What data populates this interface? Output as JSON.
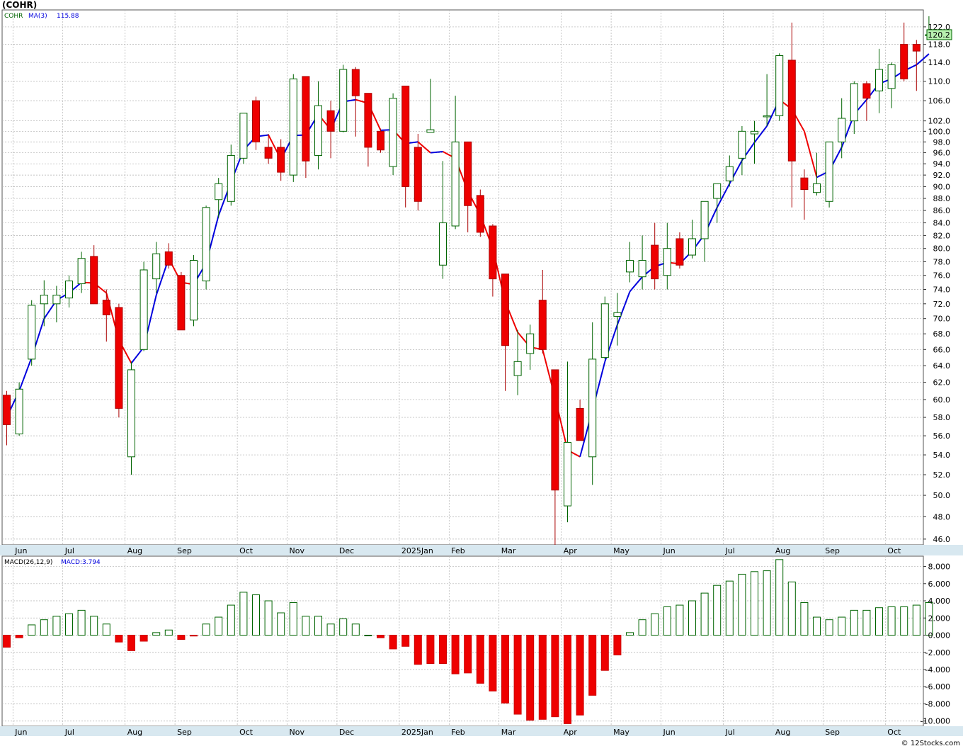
{
  "header": {
    "title": "(COHR)",
    "credit": "© 12Stocks.com"
  },
  "price_panel": {
    "label_symbol": "COHR",
    "label_ma": "MA(3)",
    "label_ma_value": "115.88",
    "last_price_tag": "120.2"
  },
  "macd_panel": {
    "label_params": "MACD(26,12,9)",
    "label_value": "MACD:3.794"
  },
  "colors": {
    "up_candle": "#006400",
    "down_candle": "#ee0000",
    "ma_up": "#0000dd",
    "ma_down": "#ee0000",
    "grid": "#b0b0b0",
    "axis_band": "#d8e8f0",
    "tag_fill": "#b8f0b0"
  },
  "chart_data": [
    {
      "type": "candlestick",
      "symbol": "COHR",
      "interval": "weekly",
      "y_scale": "log",
      "ylim": [
        45.5,
        126.0
      ],
      "y_ticks": [
        46.0,
        48.0,
        50.0,
        52.0,
        54.0,
        56.0,
        58.0,
        60.0,
        62.0,
        64.0,
        66.0,
        68.0,
        70.0,
        72.0,
        74.0,
        76.0,
        78.0,
        80.0,
        82.0,
        84.0,
        86.0,
        88.0,
        90.0,
        92.0,
        94.0,
        96.0,
        98.0,
        100.0,
        102.0,
        106.0,
        110.0,
        114.0,
        118.0,
        122.0
      ],
      "x_month_labels": [
        {
          "label": "Jun",
          "index": 1
        },
        {
          "label": "Jul",
          "index": 5
        },
        {
          "label": "Aug",
          "index": 10
        },
        {
          "label": "Sep",
          "index": 14
        },
        {
          "label": "Oct",
          "index": 19
        },
        {
          "label": "Nov",
          "index": 23
        },
        {
          "label": "Dec",
          "index": 27
        },
        {
          "label": "2025Jan",
          "index": 32
        },
        {
          "label": "Feb",
          "index": 36
        },
        {
          "label": "Mar",
          "index": 40
        },
        {
          "label": "Apr",
          "index": 45
        },
        {
          "label": "May",
          "index": 49
        },
        {
          "label": "Jun",
          "index": 53
        },
        {
          "label": "Jul",
          "index": 58
        },
        {
          "label": "Aug",
          "index": 62
        },
        {
          "label": "Sep",
          "index": 66
        },
        {
          "label": "Oct",
          "index": 71
        }
      ],
      "ohlc": [
        [
          60.5,
          61.0,
          55.0,
          57.2
        ],
        [
          56.2,
          62.0,
          56.0,
          61.2
        ],
        [
          64.8,
          72.5,
          64.0,
          71.8
        ],
        [
          72.0,
          75.3,
          69.0,
          73.2
        ],
        [
          72.0,
          74.5,
          69.5,
          73.2
        ],
        [
          72.8,
          76.0,
          71.5,
          75.2
        ],
        [
          74.8,
          79.5,
          73.5,
          78.5
        ],
        [
          78.8,
          80.5,
          72.0,
          72.0
        ],
        [
          72.5,
          74.0,
          67.0,
          70.5
        ],
        [
          71.5,
          72.0,
          58.0,
          59.0
        ],
        [
          53.8,
          64.5,
          52.0,
          63.5
        ],
        [
          66.0,
          78.0,
          65.8,
          76.8
        ],
        [
          75.5,
          81.0,
          73.5,
          79.2
        ],
        [
          79.5,
          80.8,
          77.0,
          77.5
        ],
        [
          76.0,
          76.5,
          68.5,
          68.5
        ],
        [
          69.8,
          79.0,
          69.0,
          78.2
        ],
        [
          75.2,
          86.8,
          74.0,
          86.5
        ],
        [
          87.8,
          91.5,
          84.8,
          90.5
        ],
        [
          87.5,
          97.5,
          86.8,
          95.5
        ],
        [
          95.0,
          103.5,
          94.0,
          103.5
        ],
        [
          106.0,
          106.8,
          96.5,
          98.0
        ],
        [
          97.0,
          99.5,
          94.0,
          95.0
        ],
        [
          97.0,
          98.5,
          91.0,
          92.5
        ],
        [
          92.0,
          111.5,
          90.8,
          110.5
        ],
        [
          111.0,
          111.0,
          91.5,
          94.5
        ],
        [
          95.5,
          110.0,
          93.0,
          105.0
        ],
        [
          104.0,
          106.0,
          95.0,
          100.0
        ],
        [
          100.0,
          113.5,
          99.8,
          112.5
        ],
        [
          112.5,
          113.0,
          99.0,
          107.0
        ],
        [
          107.5,
          107.5,
          93.5,
          97.0
        ],
        [
          100.0,
          100.5,
          96.0,
          96.5
        ],
        [
          93.5,
          107.5,
          92.0,
          106.5
        ],
        [
          109.0,
          109.0,
          86.5,
          90.0
        ],
        [
          97.0,
          99.5,
          86.0,
          87.5
        ],
        [
          99.8,
          110.5,
          99.8,
          100.3
        ],
        [
          77.5,
          94.5,
          75.5,
          84.0
        ],
        [
          83.5,
          107.0,
          83.0,
          98.0
        ],
        [
          98.0,
          98.0,
          82.5,
          86.8
        ],
        [
          88.5,
          89.5,
          81.8,
          82.5
        ],
        [
          83.5,
          83.8,
          73.0,
          75.5
        ],
        [
          76.2,
          76.2,
          61.0,
          66.5
        ],
        [
          62.8,
          68.5,
          60.5,
          64.5
        ],
        [
          65.5,
          69.2,
          63.5,
          68.0
        ],
        [
          72.5,
          76.8,
          65.5,
          66.0
        ],
        [
          63.5,
          63.5,
          45.5,
          50.5
        ],
        [
          49.0,
          64.5,
          47.5,
          55.3
        ],
        [
          59.0,
          60.0,
          55.5,
          55.5
        ],
        [
          53.8,
          69.5,
          51.0,
          64.8
        ],
        [
          65.0,
          73.0,
          64.8,
          72.0
        ],
        [
          70.3,
          73.5,
          66.5,
          70.8
        ],
        [
          76.5,
          81.0,
          75.0,
          78.2
        ],
        [
          75.8,
          82.0,
          74.0,
          78.2
        ],
        [
          80.5,
          84.0,
          74.0,
          75.5
        ],
        [
          76.0,
          84.0,
          74.0,
          80.0
        ],
        [
          81.5,
          82.5,
          77.0,
          77.5
        ],
        [
          79.0,
          84.5,
          78.5,
          81.5
        ],
        [
          81.5,
          87.0,
          78.0,
          87.5
        ],
        [
          88.0,
          90.5,
          84.0,
          90.5
        ],
        [
          91.0,
          95.5,
          90.0,
          93.5
        ],
        [
          95.0,
          101.0,
          92.0,
          100.0
        ],
        [
          99.5,
          102.0,
          94.0,
          100.0
        ],
        [
          103.0,
          111.5,
          101.0,
          103.0
        ],
        [
          103.0,
          116.0,
          102.0,
          115.5
        ],
        [
          114.5,
          123.0,
          86.5,
          94.5
        ],
        [
          91.5,
          93.0,
          84.5,
          89.5
        ],
        [
          89.0,
          96.0,
          88.5,
          90.5
        ],
        [
          87.5,
          98.0,
          86.5,
          98.0
        ],
        [
          98.0,
          106.5,
          95.0,
          102.5
        ],
        [
          102.0,
          110.0,
          99.5,
          109.5
        ],
        [
          109.5,
          110.0,
          102.0,
          106.5
        ],
        [
          108.0,
          117.0,
          103.5,
          112.5
        ],
        [
          108.5,
          114.0,
          104.5,
          113.5
        ],
        [
          118.0,
          123.0,
          110.0,
          110.5
        ],
        [
          118.0,
          119.0,
          108.0,
          116.5
        ],
        [
          120.2,
          124.5,
          120.0,
          120.2
        ]
      ],
      "ma3": [
        58.0,
        61.0,
        65.0,
        70.0,
        72.5,
        73.5,
        75.0,
        74.9,
        73.5,
        67.2,
        64.3,
        66.3,
        73.2,
        78.5,
        75.0,
        74.7,
        77.8,
        85.2,
        90.8,
        96.5,
        99.0,
        99.3,
        94.8,
        99.2,
        99.3,
        103.3,
        100.3,
        105.8,
        106.2,
        105.5,
        100.2,
        100.3,
        97.7,
        98.0,
        96.0,
        96.2,
        95.0,
        89.2,
        85.3,
        80.0,
        72.3,
        68.2,
        66.3,
        66.0,
        60.2,
        54.5,
        53.8,
        58.8,
        64.5,
        69.2,
        73.7,
        75.8,
        77.3,
        77.9,
        77.7,
        79.6,
        82.2,
        86.5,
        90.5,
        94.6,
        97.9,
        101.0,
        106.2,
        104.3,
        100.0,
        91.6,
        92.7,
        97.0,
        103.3,
        106.2,
        109.5,
        110.5,
        112.2,
        113.5,
        115.88
      ]
    },
    {
      "type": "bar",
      "name": "MACD(26,12,9)",
      "ylim": [
        -10.6,
        9.2
      ],
      "y_ticks": [
        -10.0,
        -8.0,
        -6.0,
        -4.0,
        -2.0,
        0.0,
        2.0,
        4.0,
        6.0,
        8.0
      ],
      "values": [
        -1.4,
        -0.3,
        1.2,
        1.8,
        2.2,
        2.5,
        2.9,
        2.2,
        1.3,
        -0.8,
        -1.8,
        -0.7,
        0.3,
        0.6,
        -0.5,
        -0.1,
        1.3,
        2.1,
        3.5,
        5.0,
        4.7,
        4.0,
        2.6,
        3.8,
        2.2,
        2.2,
        1.3,
        1.9,
        1.3,
        0.0,
        -0.3,
        -1.6,
        -1.3,
        -3.4,
        -3.3,
        -3.3,
        -4.5,
        -4.4,
        -5.6,
        -6.5,
        -7.9,
        -9.2,
        -9.9,
        -9.8,
        -9.5,
        -10.3,
        -9.3,
        -7.0,
        -4.1,
        -2.3,
        0.3,
        1.8,
        2.5,
        3.3,
        3.5,
        4.0,
        4.9,
        5.8,
        6.3,
        7.1,
        7.4,
        7.5,
        8.8,
        6.2,
        3.8,
        2.1,
        1.8,
        2.1,
        2.9,
        2.9,
        3.2,
        3.3,
        3.3,
        3.5,
        3.794
      ]
    }
  ]
}
